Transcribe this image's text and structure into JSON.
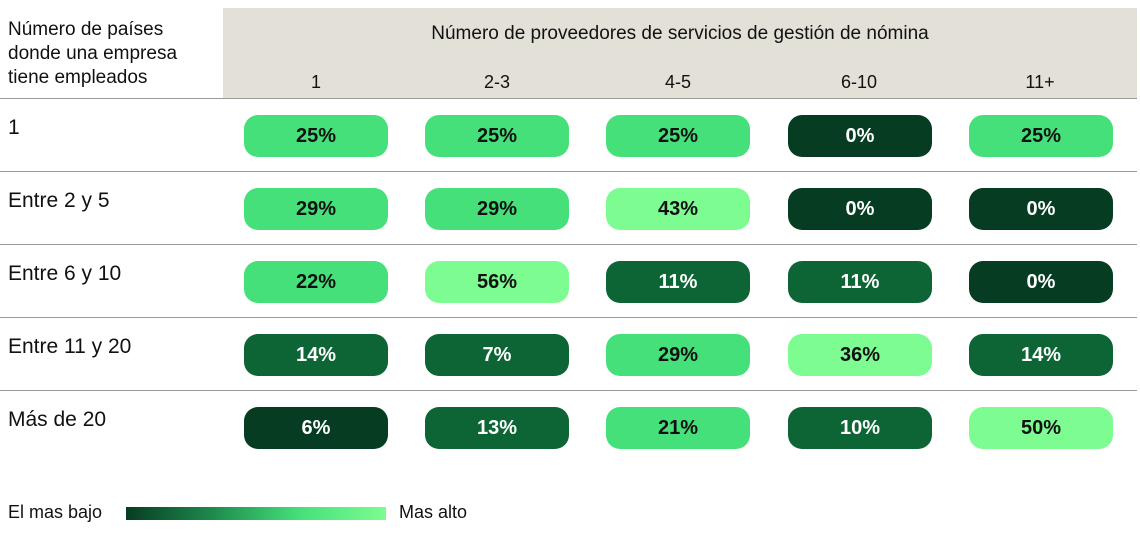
{
  "chart_data": {
    "type": "heatmap",
    "row_header": "Número de países donde una empresa tiene empleados",
    "title": "Número de proveedores de servicios de gestión de nómina",
    "columns": [
      "1",
      "2-3",
      "4-5",
      "6-10",
      "11+"
    ],
    "rows": [
      {
        "label": "1",
        "values": [
          25,
          25,
          25,
          0,
          25
        ],
        "display": [
          "25%",
          "25%",
          "25%",
          "0%",
          "25%"
        ]
      },
      {
        "label": "Entre 2 y 5",
        "values": [
          29,
          29,
          43,
          0,
          0
        ],
        "display": [
          "29%",
          "29%",
          "43%",
          "0%",
          "0%"
        ]
      },
      {
        "label": "Entre 6 y 10",
        "values": [
          22,
          56,
          11,
          11,
          0
        ],
        "display": [
          "22%",
          "56%",
          "11%",
          "11%",
          "0%"
        ]
      },
      {
        "label": "Entre 11 y 20",
        "values": [
          14,
          7,
          29,
          36,
          14
        ],
        "display": [
          "14%",
          "7%",
          "29%",
          "36%",
          "14%"
        ]
      },
      {
        "label": "Más de 20",
        "values": [
          6,
          13,
          21,
          10,
          50
        ],
        "display": [
          "6%",
          "13%",
          "21%",
          "10%",
          "50%"
        ]
      }
    ],
    "legend": {
      "low": "El mas bajo",
      "high": "Mas alto"
    },
    "colors": {
      "lowest": "#063d22",
      "low": "#0d6535",
      "mid": "#1e8a4d",
      "high": "#45e07a",
      "highest": "#7dfc91",
      "header_bg": "#e3e0d8"
    }
  }
}
